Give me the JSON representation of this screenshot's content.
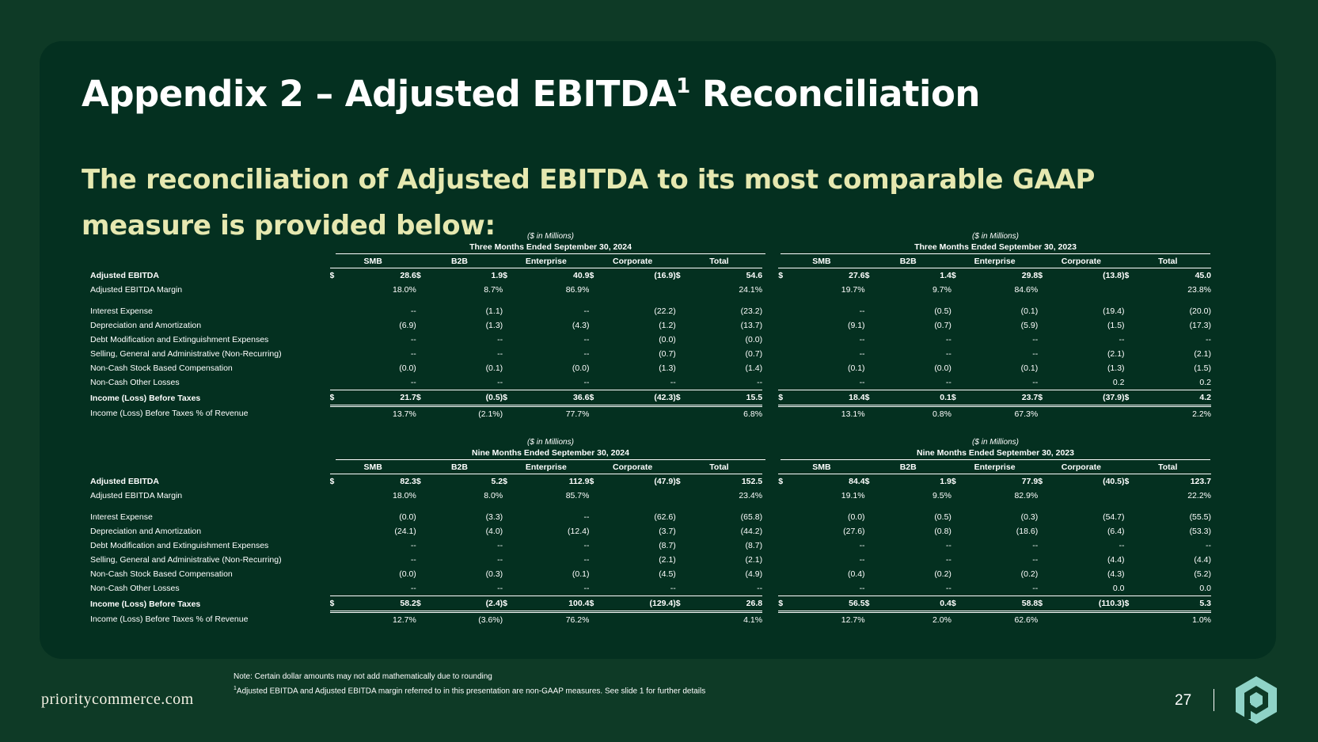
{
  "title": "Appendix 2 – Adjusted EBITDA",
  "title_sup": "1",
  "title_end": " Reconciliation",
  "subtitle": "The reconciliation of Adjusted EBITDA to its most comparable GAAP measure is provided below:",
  "unit_label": "($ in Millions)",
  "columns": [
    "SMB",
    "B2B",
    "Enterprise",
    "Corporate",
    "Total"
  ],
  "currency": "$",
  "blocks": [
    {
      "periods": [
        "Three Months Ended September 30, 2024",
        "Three Months Ended September 30, 2023"
      ],
      "rows": [
        {
          "label": "Adjusted EBITDA",
          "type": "bold-top",
          "values": [
            [
              "28.6",
              "1.9",
              "40.9",
              "(16.9)",
              "54.6"
            ],
            [
              "27.6",
              "1.4",
              "29.8",
              "(13.8)",
              "45.0"
            ]
          ]
        },
        {
          "label": "Adjusted EBITDA Margin",
          "type": "pct",
          "values": [
            [
              "18.0%",
              "8.7%",
              "86.9%",
              "",
              "24.1%"
            ],
            [
              "19.7%",
              "9.7%",
              "84.6%",
              "",
              "23.8%"
            ]
          ]
        },
        {
          "label": "Interest Expense",
          "type": "plain",
          "values": [
            [
              "--",
              "(1.1)",
              "--",
              "(22.2)",
              "(23.2)"
            ],
            [
              "--",
              "(0.5)",
              "(0.1)",
              "(19.4)",
              "(20.0)"
            ]
          ]
        },
        {
          "label": "Depreciation and Amortization",
          "type": "plain",
          "values": [
            [
              "(6.9)",
              "(1.3)",
              "(4.3)",
              "(1.2)",
              "(13.7)"
            ],
            [
              "(9.1)",
              "(0.7)",
              "(5.9)",
              "(1.5)",
              "(17.3)"
            ]
          ]
        },
        {
          "label": "Debt Modification and Extinguishment Expenses",
          "type": "plain",
          "values": [
            [
              "--",
              "--",
              "--",
              "(0.0)",
              "(0.0)"
            ],
            [
              "--",
              "--",
              "--",
              "--",
              "--"
            ]
          ]
        },
        {
          "label": "Selling, General and Administrative (Non-Recurring)",
          "type": "plain",
          "values": [
            [
              "--",
              "--",
              "--",
              "(0.7)",
              "(0.7)"
            ],
            [
              "--",
              "--",
              "--",
              "(2.1)",
              "(2.1)"
            ]
          ]
        },
        {
          "label": "Non-Cash Stock Based Compensation",
          "type": "plain",
          "values": [
            [
              "(0.0)",
              "(0.1)",
              "(0.0)",
              "(1.3)",
              "(1.4)"
            ],
            [
              "(0.1)",
              "(0.0)",
              "(0.1)",
              "(1.3)",
              "(1.5)"
            ]
          ]
        },
        {
          "label": "Non-Cash Other Losses",
          "type": "plain",
          "values": [
            [
              "--",
              "--",
              "--",
              "--",
              "--"
            ],
            [
              "--",
              "--",
              "--",
              "0.2",
              "0.2"
            ]
          ]
        },
        {
          "label": "Income (Loss) Before Taxes",
          "type": "bold-total",
          "values": [
            [
              "21.7",
              "(0.5)",
              "36.6",
              "(42.3)",
              "15.5"
            ],
            [
              "18.4",
              "0.1",
              "23.7",
              "(37.9)",
              "4.2"
            ]
          ]
        },
        {
          "label": "Income (Loss) Before Taxes % of Revenue",
          "type": "pct",
          "values": [
            [
              "13.7%",
              "(2.1%)",
              "77.7%",
              "",
              "6.8%"
            ],
            [
              "13.1%",
              "0.8%",
              "67.3%",
              "",
              "2.2%"
            ]
          ]
        }
      ]
    },
    {
      "periods": [
        "Nine Months Ended September 30, 2024",
        "Nine Months Ended September 30, 2023"
      ],
      "rows": [
        {
          "label": "Adjusted EBITDA",
          "type": "bold-top",
          "values": [
            [
              "82.3",
              "5.2",
              "112.9",
              "(47.9)",
              "152.5"
            ],
            [
              "84.4",
              "1.9",
              "77.9",
              "(40.5)",
              "123.7"
            ]
          ]
        },
        {
          "label": "Adjusted EBITDA Margin",
          "type": "pct",
          "values": [
            [
              "18.0%",
              "8.0%",
              "85.7%",
              "",
              "23.4%"
            ],
            [
              "19.1%",
              "9.5%",
              "82.9%",
              "",
              "22.2%"
            ]
          ]
        },
        {
          "label": "Interest Expense",
          "type": "plain",
          "values": [
            [
              "(0.0)",
              "(3.3)",
              "--",
              "(62.6)",
              "(65.8)"
            ],
            [
              "(0.0)",
              "(0.5)",
              "(0.3)",
              "(54.7)",
              "(55.5)"
            ]
          ]
        },
        {
          "label": "Depreciation and Amortization",
          "type": "plain",
          "values": [
            [
              "(24.1)",
              "(4.0)",
              "(12.4)",
              "(3.7)",
              "(44.2)"
            ],
            [
              "(27.6)",
              "(0.8)",
              "(18.6)",
              "(6.4)",
              "(53.3)"
            ]
          ]
        },
        {
          "label": "Debt Modification and Extinguishment Expenses",
          "type": "plain",
          "values": [
            [
              "--",
              "--",
              "--",
              "(8.7)",
              "(8.7)"
            ],
            [
              "--",
              "--",
              "--",
              "--",
              "--"
            ]
          ]
        },
        {
          "label": "Selling, General and Administrative (Non-Recurring)",
          "type": "plain",
          "values": [
            [
              "--",
              "--",
              "--",
              "(2.1)",
              "(2.1)"
            ],
            [
              "--",
              "--",
              "--",
              "(4.4)",
              "(4.4)"
            ]
          ]
        },
        {
          "label": "Non-Cash Stock Based Compensation",
          "type": "plain",
          "values": [
            [
              "(0.0)",
              "(0.3)",
              "(0.1)",
              "(4.5)",
              "(4.9)"
            ],
            [
              "(0.4)",
              "(0.2)",
              "(0.2)",
              "(4.3)",
              "(5.2)"
            ]
          ]
        },
        {
          "label": "Non-Cash Other Losses",
          "type": "plain",
          "values": [
            [
              "--",
              "--",
              "--",
              "--",
              "--"
            ],
            [
              "--",
              "--",
              "--",
              "0.0",
              "0.0"
            ]
          ]
        },
        {
          "label": "Income (Loss) Before Taxes",
          "type": "bold-total",
          "values": [
            [
              "58.2",
              "(2.4)",
              "100.4",
              "(129.4)",
              "26.8"
            ],
            [
              "56.5",
              "0.4",
              "58.8",
              "(110.3)",
              "5.3"
            ]
          ]
        },
        {
          "label": "Income (Loss) Before Taxes % of Revenue",
          "type": "pct",
          "values": [
            [
              "12.7%",
              "(3.6%)",
              "76.2%",
              "",
              "4.1%"
            ],
            [
              "12.7%",
              "2.0%",
              "62.6%",
              "",
              "1.0%"
            ]
          ]
        }
      ]
    }
  ],
  "footnote": {
    "note": "Note: Certain dollar amounts may not add mathematically due to rounding",
    "sup": "1",
    "text": "Adjusted EBITDA and Adjusted EBITDA margin referred to in this presentation are non-GAAP measures. See slide 1 for further details"
  },
  "brand": "prioritycommerce.com",
  "page_number": "27",
  "colors": {
    "background": "#0e3a26",
    "card": "#043020",
    "subtitle": "#e6e8b0",
    "logo": "#8fd3c7"
  },
  "logo_icon": "priority-hexagon-logo"
}
